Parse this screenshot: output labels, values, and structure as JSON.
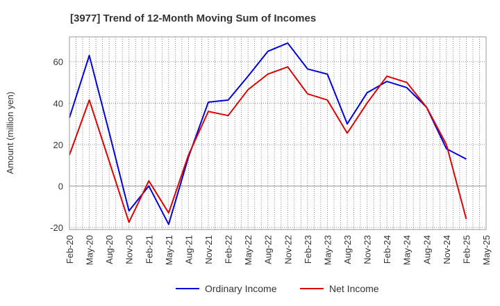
{
  "chart_data": {
    "type": "line",
    "title": "[3977]  Trend of 12-Month Moving Sum of Incomes",
    "xlabel": "",
    "ylabel": "Amount (million yen)",
    "ylim": [
      -21,
      72
    ],
    "yticks": [
      -20,
      0,
      20,
      40,
      60
    ],
    "categories": [
      "Feb-20",
      "May-20",
      "Aug-20",
      "Nov-20",
      "Feb-21",
      "May-21",
      "Aug-21",
      "Nov-21",
      "Feb-22",
      "May-22",
      "Aug-22",
      "Nov-22",
      "Feb-23",
      "May-23",
      "Aug-23",
      "Nov-23",
      "Feb-24",
      "May-24",
      "Aug-24",
      "Nov-24",
      "Feb-25",
      "May-25"
    ],
    "grid": true,
    "legend_position": "bottom",
    "series": [
      {
        "name": "Ordinary Income",
        "color": "#0000dd",
        "values": [
          33,
          63,
          26,
          -12,
          0,
          -18.5,
          14,
          40.5,
          41.5,
          53,
          65,
          69,
          56.5,
          54,
          30,
          45,
          50.5,
          47.5,
          38,
          18,
          13,
          null
        ]
      },
      {
        "name": "Net Income",
        "color": "#dd0000",
        "values": [
          15,
          41.5,
          12,
          -17.5,
          2.5,
          -13,
          15,
          36,
          34,
          46.5,
          54,
          57.5,
          44.5,
          41.5,
          25.5,
          40,
          53,
          50,
          38,
          20,
          -16,
          null
        ]
      }
    ]
  }
}
